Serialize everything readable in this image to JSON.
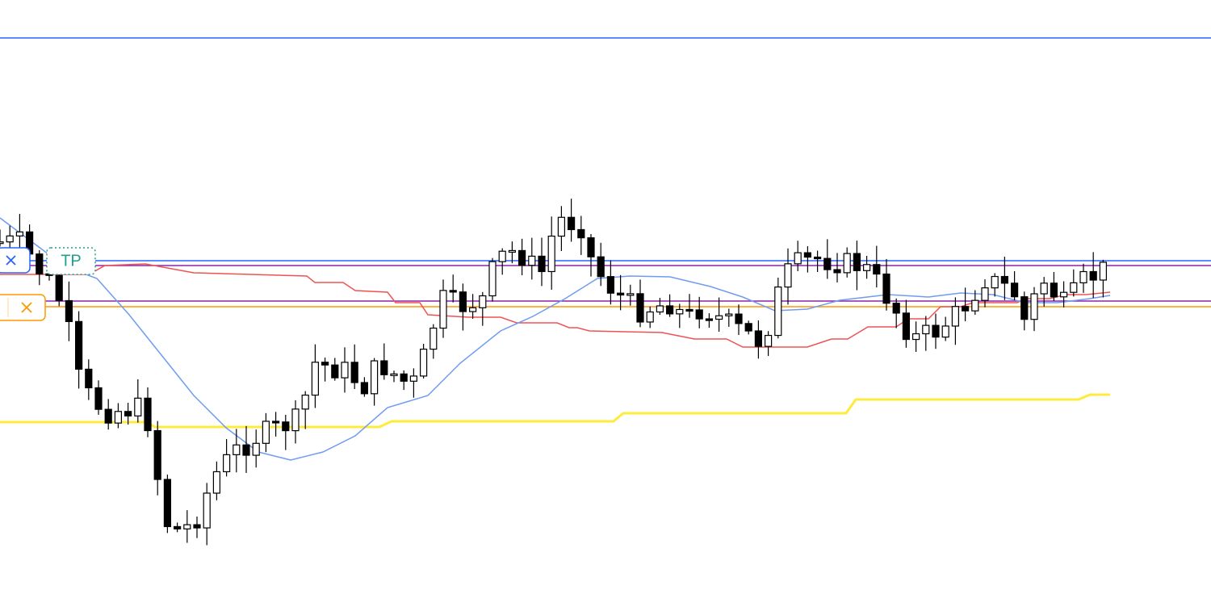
{
  "order_labels": {
    "take_profit": "TP"
  }
}
